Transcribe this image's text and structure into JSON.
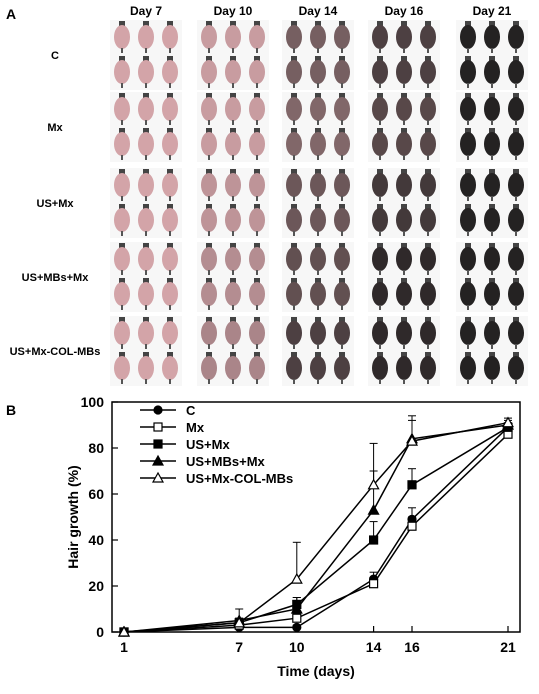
{
  "panel_a": {
    "letter": "A",
    "days": [
      "Day 7",
      "Day 10",
      "Day 14",
      "Day 16",
      "Day 21"
    ],
    "groups": [
      "C",
      "Mx",
      "US+Mx",
      "US+MBs+Mx",
      "US+Mx-COL-MBs"
    ],
    "skin_color": "#e7b3b8",
    "fur_color": "#1a1a1a"
  },
  "panel_b": {
    "letter": "B"
  },
  "chart_data": {
    "type": "line",
    "xlabel": "Time (days)",
    "ylabel": "Hair growth (%)",
    "x": [
      1,
      7,
      10,
      14,
      16,
      21
    ],
    "x_ticks": [
      "1",
      "7",
      "10",
      "14",
      "16",
      "21"
    ],
    "ylim": [
      0,
      100
    ],
    "y_ticks": [
      "0",
      "20",
      "40",
      "60",
      "80",
      "100"
    ],
    "legend_position": "top-left",
    "series": [
      {
        "name": "C",
        "marker": "circle-filled",
        "values": [
          0,
          2,
          2,
          23,
          49,
          89
        ],
        "err": [
          0,
          1,
          1,
          3,
          5,
          1
        ]
      },
      {
        "name": "Mx",
        "marker": "square-open",
        "values": [
          0,
          3,
          6,
          21,
          46,
          86
        ],
        "err": [
          0,
          1,
          2,
          2,
          4,
          1
        ]
      },
      {
        "name": "US+Mx",
        "marker": "square-filled",
        "values": [
          0,
          4,
          12,
          40,
          64,
          89
        ],
        "err": [
          0,
          2,
          3,
          8,
          7,
          2
        ]
      },
      {
        "name": "US+MBs+Mx",
        "marker": "triangle-filled",
        "values": [
          0,
          5,
          10,
          53,
          84,
          90
        ],
        "err": [
          0,
          5,
          5,
          17,
          10,
          2
        ]
      },
      {
        "name": "US+Mx-COL-MBs",
        "marker": "triangle-open",
        "values": [
          0,
          4,
          23,
          64,
          83,
          91
        ],
        "err": [
          0,
          2,
          16,
          18,
          9,
          2
        ]
      }
    ]
  }
}
